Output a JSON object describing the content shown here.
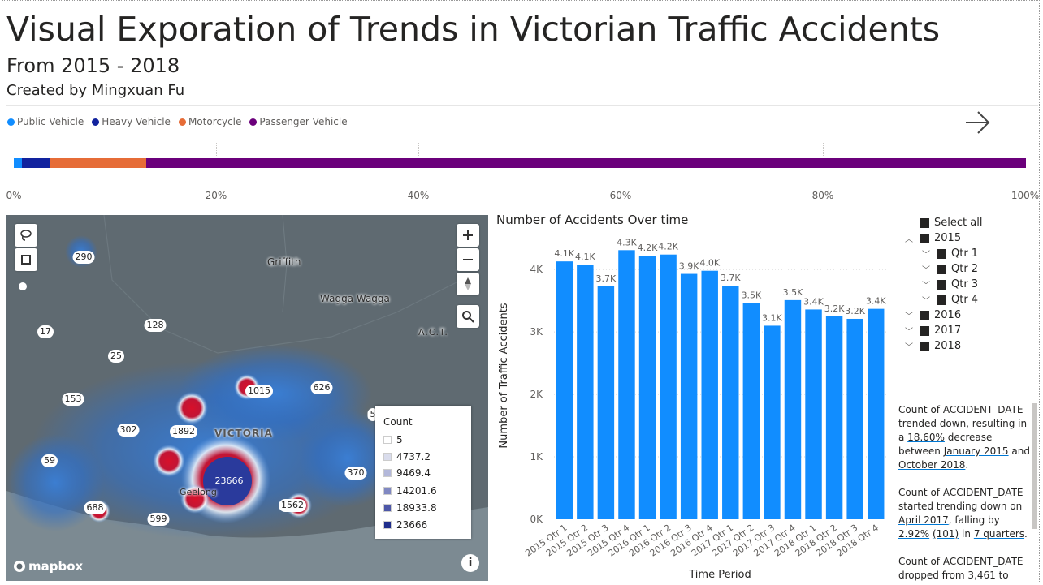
{
  "header": {
    "title": "Visual Exporation of Trends in Victorian Traffic Accidents",
    "subtitle": "From 2015 - 2018",
    "byline": "Created by Mingxuan Fu"
  },
  "vehicle_legend": [
    {
      "label": "Public Vehicle",
      "color": "#118DFF"
    },
    {
      "label": "Heavy Vehicle",
      "color": "#12239E"
    },
    {
      "label": "Motorcycle",
      "color": "#E66C37"
    },
    {
      "label": "Passenger Vehicle",
      "color": "#6B007B"
    }
  ],
  "stacked_bar": {
    "segments_percent": [
      0.8,
      2.8,
      9.5,
      86.9
    ],
    "ticks": [
      "0%",
      "20%",
      "40%",
      "60%",
      "80%",
      "100%"
    ]
  },
  "map": {
    "places": [
      {
        "name": "Griffith"
      },
      {
        "name": "Wagga Wagga"
      },
      {
        "name": "A.C.T."
      },
      {
        "name": "VICTORIA"
      },
      {
        "name": "Geelong"
      }
    ],
    "clusters": [
      "290",
      "17",
      "128",
      "25",
      "153",
      "1015",
      "626",
      "302",
      "1892",
      "59",
      "23666",
      "370",
      "688",
      "599",
      "1562",
      "5"
    ],
    "legend_title": "Count",
    "legend_items": [
      {
        "label": "5",
        "color": "#ffffff"
      },
      {
        "label": "4737.2",
        "color": "#d9dcec"
      },
      {
        "label": "9469.4",
        "color": "#b3b8da"
      },
      {
        "label": "14201.6",
        "color": "#8088c2"
      },
      {
        "label": "18933.8",
        "color": "#4d57a8"
      },
      {
        "label": "23666",
        "color": "#1f2d8c"
      }
    ],
    "attribution": "mapbox",
    "info_glyph": "i",
    "icons": [
      "lasso-icon",
      "rect-select-icon",
      "zoom-in-icon",
      "zoom-out-icon",
      "compass-icon",
      "search-icon"
    ]
  },
  "chart_data": {
    "type": "bar",
    "title": "Number of Accidents Over time",
    "xlabel": "Time Period",
    "ylabel": "Number of Traffic Accidents",
    "color": "#118DFF",
    "ylim": [
      0,
      4600
    ],
    "yticks": [
      0,
      1000,
      2000,
      3000,
      4000
    ],
    "ytick_labels": [
      "0K",
      "1K",
      "2K",
      "3K",
      "4K"
    ],
    "grid": true,
    "categories": [
      "2015 Qtr 1",
      "2015 Qtr 2",
      "2015 Qtr 3",
      "2015 Qtr 4",
      "2016 Qtr 1",
      "2016 Qtr 2",
      "2016 Qtr 3",
      "2016 Qtr 4",
      "2017 Qtr 1",
      "2017 Qtr 2",
      "2017 Qtr 3",
      "2017 Qtr 4",
      "2018 Qtr 1",
      "2018 Qtr 2",
      "2018 Qtr 3",
      "2018 Qtr 4"
    ],
    "values": [
      4130,
      4080,
      3730,
      4310,
      4220,
      4240,
      3930,
      3980,
      3740,
      3460,
      3100,
      3510,
      3360,
      3250,
      3210,
      3370
    ],
    "data_labels": [
      "4.1K",
      "4.1K",
      "3.7K",
      "4.3K",
      "4.2K",
      "4.2K",
      "3.9K",
      "4.0K",
      "3.7K",
      "3.5K",
      "3.1K",
      "3.5K",
      "3.4K",
      "3.2K",
      "3.2K",
      "3.4K"
    ]
  },
  "slicer": {
    "items": [
      {
        "label": "Select all",
        "chevron": ""
      },
      {
        "label": "2015",
        "chevron": "up"
      },
      {
        "label": "Qtr 1",
        "chevron": "down"
      },
      {
        "label": "Qtr 2",
        "chevron": "down"
      },
      {
        "label": "Qtr 3",
        "chevron": "down"
      },
      {
        "label": "Qtr 4",
        "chevron": "down"
      },
      {
        "label": "2016",
        "chevron": "down"
      },
      {
        "label": "2017",
        "chevron": "down"
      },
      {
        "label": "2018",
        "chevron": "down"
      }
    ]
  },
  "narrative": {
    "p1": {
      "a": "Count of ACCIDENT_DATE trended down, resulting in a ",
      "pct": "18.60%",
      "b": " decrease between ",
      "d1": "January 2015",
      "c": " and ",
      "d2": "October 2018",
      "e": "."
    },
    "p2": {
      "a": "Count of ACCIDENT_DATE",
      "b": " started trending down on ",
      "d1": "April 2017",
      "c": ", falling by ",
      "pct": "2.92%",
      "d": " ",
      "num": "(101)",
      "e": " in ",
      "q": "7 quarters",
      "f": "."
    },
    "p3": {
      "a": "Count of ACCIDENT_DATE",
      "b": " dropped from 3,461 to"
    }
  }
}
